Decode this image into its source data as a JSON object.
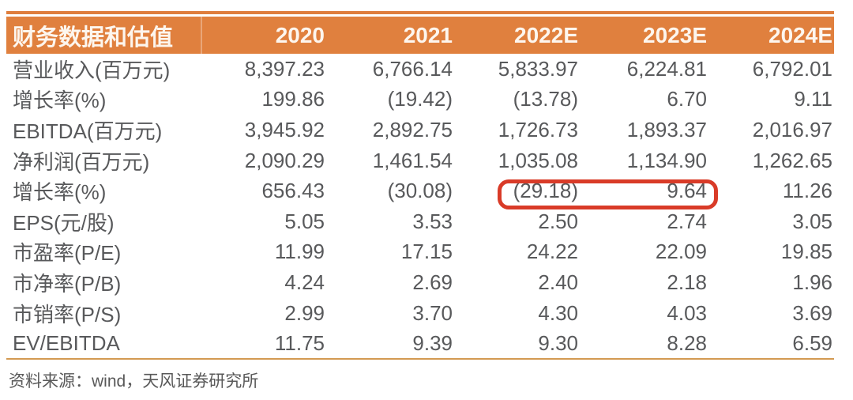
{
  "colors": {
    "header_bg": "#E0803E",
    "accent_line": "#DF7E3E",
    "bottom_rule": "#D39A52",
    "body_text": "#58595B",
    "highlight_border": "#D93B28"
  },
  "table": {
    "title": "财务数据和估值",
    "columns": [
      "2020",
      "2021",
      "2022E",
      "2023E",
      "2024E"
    ],
    "rows": [
      {
        "label": "营业收入(百万元)",
        "values": [
          "8,397.23",
          "6,766.14",
          "5,833.97",
          "6,224.81",
          "6,792.01"
        ]
      },
      {
        "label": "增长率(%)",
        "values": [
          "199.86",
          "(19.42)",
          "(13.78)",
          "6.70",
          "9.11"
        ]
      },
      {
        "label": "EBITDA(百万元)",
        "values": [
          "3,945.92",
          "2,892.75",
          "1,726.73",
          "1,893.37",
          "2,016.97"
        ]
      },
      {
        "label": "净利润(百万元)",
        "values": [
          "2,090.29",
          "1,461.54",
          "1,035.08",
          "1,134.90",
          "1,262.65"
        ]
      },
      {
        "label": "增长率(%)",
        "values": [
          "656.43",
          "(30.08)",
          "(29.18)",
          "9.64",
          "11.26"
        ]
      },
      {
        "label": "EPS(元/股)",
        "values": [
          "5.05",
          "3.53",
          "2.50",
          "2.74",
          "3.05"
        ]
      },
      {
        "label": "市盈率(P/E)",
        "values": [
          "11.99",
          "17.15",
          "24.22",
          "22.09",
          "19.85"
        ]
      },
      {
        "label": "市净率(P/B)",
        "values": [
          "4.24",
          "2.69",
          "2.40",
          "2.18",
          "1.96"
        ]
      },
      {
        "label": "市销率(P/S)",
        "values": [
          "2.99",
          "3.70",
          "4.30",
          "4.03",
          "3.69"
        ]
      },
      {
        "label": "EV/EBITDA",
        "values": [
          "11.75",
          "9.39",
          "9.30",
          "8.28",
          "6.59"
        ]
      }
    ],
    "highlight": {
      "row_index": 4,
      "value_indexes": [
        2,
        3
      ],
      "note": "red rounded box around 2022E and 2023E growth-rate values"
    }
  },
  "footer": {
    "source_note": "资料来源：wind，天风证券研究所"
  }
}
